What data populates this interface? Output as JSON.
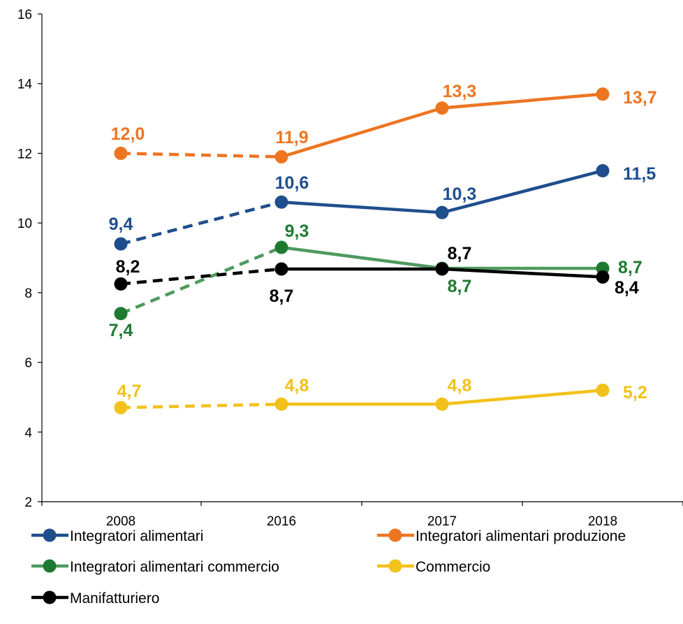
{
  "chart_data": {
    "type": "line",
    "categories": [
      "2008",
      "2016",
      "2017",
      "2018"
    ],
    "ylim": [
      2,
      16
    ],
    "yticks": [
      2,
      4,
      6,
      8,
      10,
      12,
      14,
      16
    ],
    "grid": false,
    "legend_position": "bottom",
    "note": "",
    "series": [
      {
        "name": "Integratori alimentari",
        "color": "#1f4e8c",
        "values": [
          9.4,
          10.6,
          10.3,
          11.5
        ],
        "labels": [
          "9,4",
          "10,6",
          "10,3",
          "11,5"
        ],
        "label_color": "#1f4e8c"
      },
      {
        "name": "Integratori alimentari produzione",
        "color": "#ed7522",
        "values": [
          12.0,
          11.9,
          13.3,
          13.7
        ],
        "labels": [
          "12,0",
          "11,9",
          "13,3",
          "13,7"
        ],
        "label_color": "#ed7522"
      },
      {
        "name": "Integratori alimentari commercio",
        "color": "#4e9a5e",
        "values": [
          7.4,
          9.3,
          8.7,
          8.7
        ],
        "labels": [
          "7,4",
          "9,3",
          "8,7",
          "8,7"
        ],
        "label_color": "#1e7a30",
        "marker_color": "#1e7a30"
      },
      {
        "name": "Commercio",
        "color": "#f2c11b",
        "values": [
          4.7,
          4.8,
          4.8,
          5.2
        ],
        "labels": [
          "4,7",
          "4,8",
          "4,8",
          "5,2"
        ],
        "label_color": "#f2c11b"
      },
      {
        "name": "Manifatturiero",
        "color": "#000000",
        "values": [
          8.25,
          8.68,
          8.68,
          8.45
        ],
        "labels": [
          "8,2",
          "8,7",
          "8,7",
          "8,4"
        ],
        "label_color": "#000000"
      }
    ]
  }
}
